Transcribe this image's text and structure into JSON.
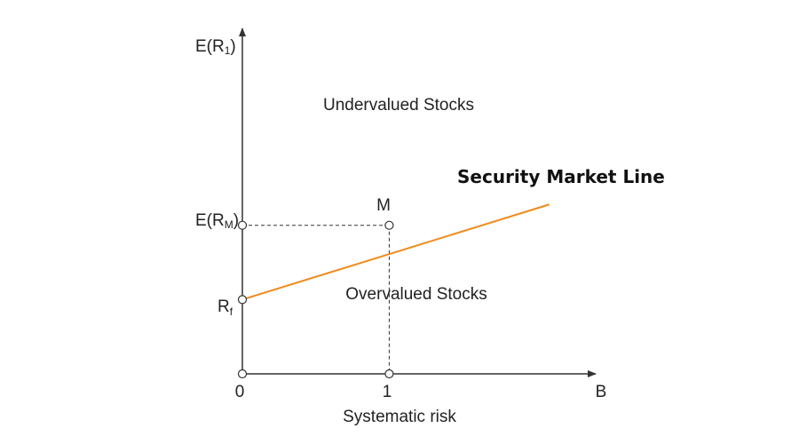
{
  "chart_data": {
    "type": "line",
    "y_axis_label": {
      "main": "E(R",
      "sub": "1",
      "close": ")"
    },
    "x_axis_end_label": "B",
    "x_axis_title": "Systematic risk",
    "x_ticks": [
      "0",
      "1"
    ],
    "y_ticks": [
      {
        "main": "E(R",
        "sub": "M",
        "close": ")"
      },
      {
        "main": "R",
        "sub": "f",
        "close": ""
      }
    ],
    "region_labels": {
      "above": "Undervalued Stocks",
      "below": "Overvalued Stocks"
    },
    "series": [
      {
        "name": "Security Market Line",
        "color": "#f08a1c",
        "x": [
          0,
          2.09
        ],
        "y": [
          1,
          2.28
        ]
      }
    ],
    "points": [
      {
        "label": "M",
        "x": 1,
        "y": 2
      },
      {
        "label": "",
        "x": 0,
        "y": 0
      },
      {
        "label": "",
        "x": 0,
        "y": 1
      },
      {
        "label": "",
        "x": 1,
        "y": 0
      },
      {
        "label": "",
        "x": 0,
        "y": 2
      }
    ],
    "guides": [
      {
        "from": [
          0,
          2
        ],
        "to": [
          1,
          2
        ]
      },
      {
        "from": [
          1,
          2
        ],
        "to": [
          1,
          0
        ]
      }
    ],
    "xlim": [
      0,
      2.4
    ],
    "ylim": [
      0,
      4.65
    ],
    "grid": false,
    "legend": "none"
  }
}
